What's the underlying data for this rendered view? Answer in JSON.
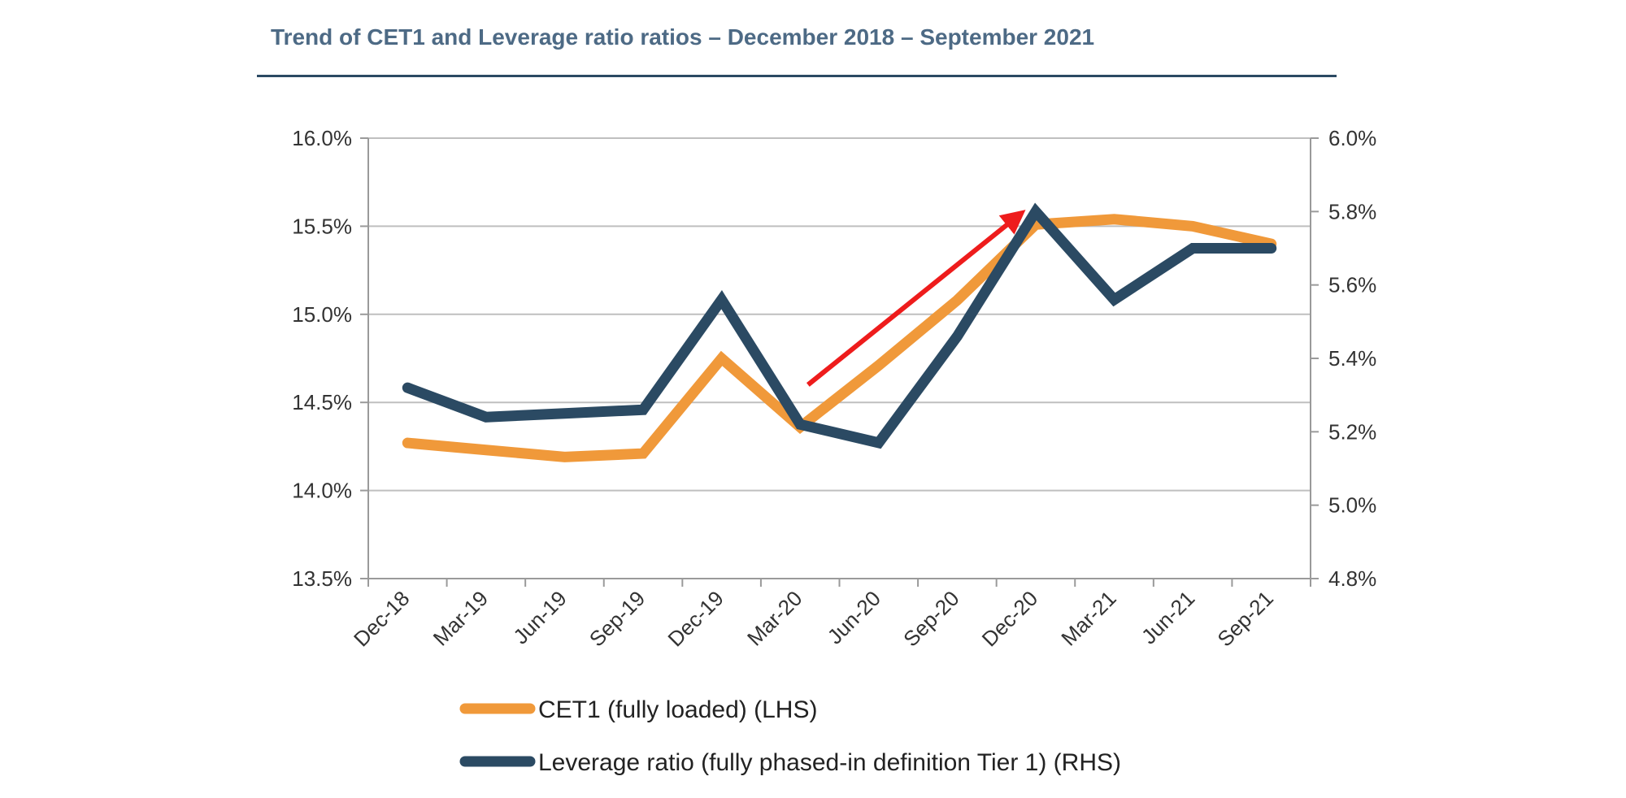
{
  "title": "Trend of CET1 and Leverage ratio ratios – December 2018 – September 2021",
  "chart_data": {
    "type": "line",
    "title": "Trend of CET1 and Leverage ratio ratios – December 2018 – September 2021",
    "categories": [
      "Dec-18",
      "Mar-19",
      "Jun-19",
      "Sep-19",
      "Dec-19",
      "Mar-20",
      "Jun-20",
      "Sep-20",
      "Dec-20",
      "Mar-21",
      "Jun-21",
      "Sep-21"
    ],
    "series": [
      {
        "name": "CET1 (fully loaded) (LHS)",
        "axis": "left",
        "color": "#f0993a",
        "values": [
          14.27,
          14.23,
          14.19,
          14.21,
          14.75,
          14.36,
          14.71,
          15.08,
          15.51,
          15.54,
          15.5,
          15.4
        ]
      },
      {
        "name": "Leverage ratio (fully phased-in definition Tier 1) (RHS)",
        "axis": "right",
        "color": "#2b4a63",
        "values": [
          5.32,
          5.24,
          5.25,
          5.26,
          5.56,
          5.22,
          5.17,
          5.46,
          5.8,
          5.56,
          5.7,
          5.7
        ]
      }
    ],
    "y_left": {
      "min": 13.5,
      "max": 16.0,
      "ticks": [
        13.5,
        14.0,
        14.5,
        15.0,
        15.5,
        16.0
      ],
      "tick_labels": [
        "13.5%",
        "14.0%",
        "14.5%",
        "15.0%",
        "15.5%",
        "16.0%"
      ]
    },
    "y_right": {
      "min": 4.8,
      "max": 6.0,
      "ticks": [
        4.8,
        5.0,
        5.2,
        5.4,
        5.6,
        5.8,
        6.0
      ],
      "tick_labels": [
        "4.8%",
        "5.0%",
        "5.2%",
        "5.4%",
        "5.6%",
        "5.8%",
        "6.0%"
      ]
    },
    "grid": true,
    "legend": "bottom",
    "annotation": {
      "type": "arrow",
      "color": "#ee1c1c",
      "from": {
        "category_index": 5.1,
        "value_left": 14.6
      },
      "to": {
        "category_index": 7.75,
        "value_left": 15.55
      }
    }
  }
}
